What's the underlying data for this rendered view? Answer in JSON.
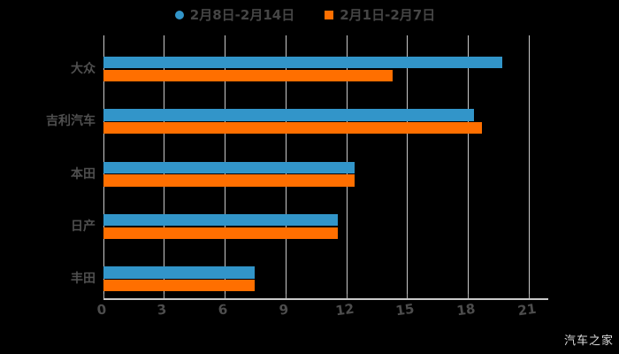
{
  "legend": {
    "items": [
      {
        "label": "2月8日-2月14日",
        "marker": "circle",
        "color": "#3295c9"
      },
      {
        "label": "2月1日-2月7日",
        "marker": "square",
        "color": "#ff6f00"
      }
    ]
  },
  "watermark": "汽车之家",
  "colors": {
    "series_blue": "#3295c9",
    "series_orange": "#ff6f00",
    "gridline": "#c9c9c9",
    "axis_text": "#4d4d4d",
    "background": "#000000"
  },
  "chart_data": {
    "type": "bar",
    "orientation": "horizontal",
    "title": "",
    "xlabel": "",
    "ylabel": "",
    "categories": [
      "大众",
      "吉利汽车",
      "本田",
      "日产",
      "丰田"
    ],
    "series": [
      {
        "name": "2月8日-2月14日",
        "color": "#3295c9",
        "values": [
          19.7,
          18.3,
          12.4,
          11.6,
          7.5
        ]
      },
      {
        "name": "2月1日-2月7日",
        "color": "#ff6f00",
        "values": [
          14.3,
          18.7,
          12.4,
          11.6,
          7.5
        ]
      }
    ],
    "x_ticks": [
      0,
      3,
      6,
      9,
      12,
      15,
      18,
      21
    ],
    "xlim": [
      0,
      21
    ],
    "grid": true,
    "legend_position": "top"
  }
}
